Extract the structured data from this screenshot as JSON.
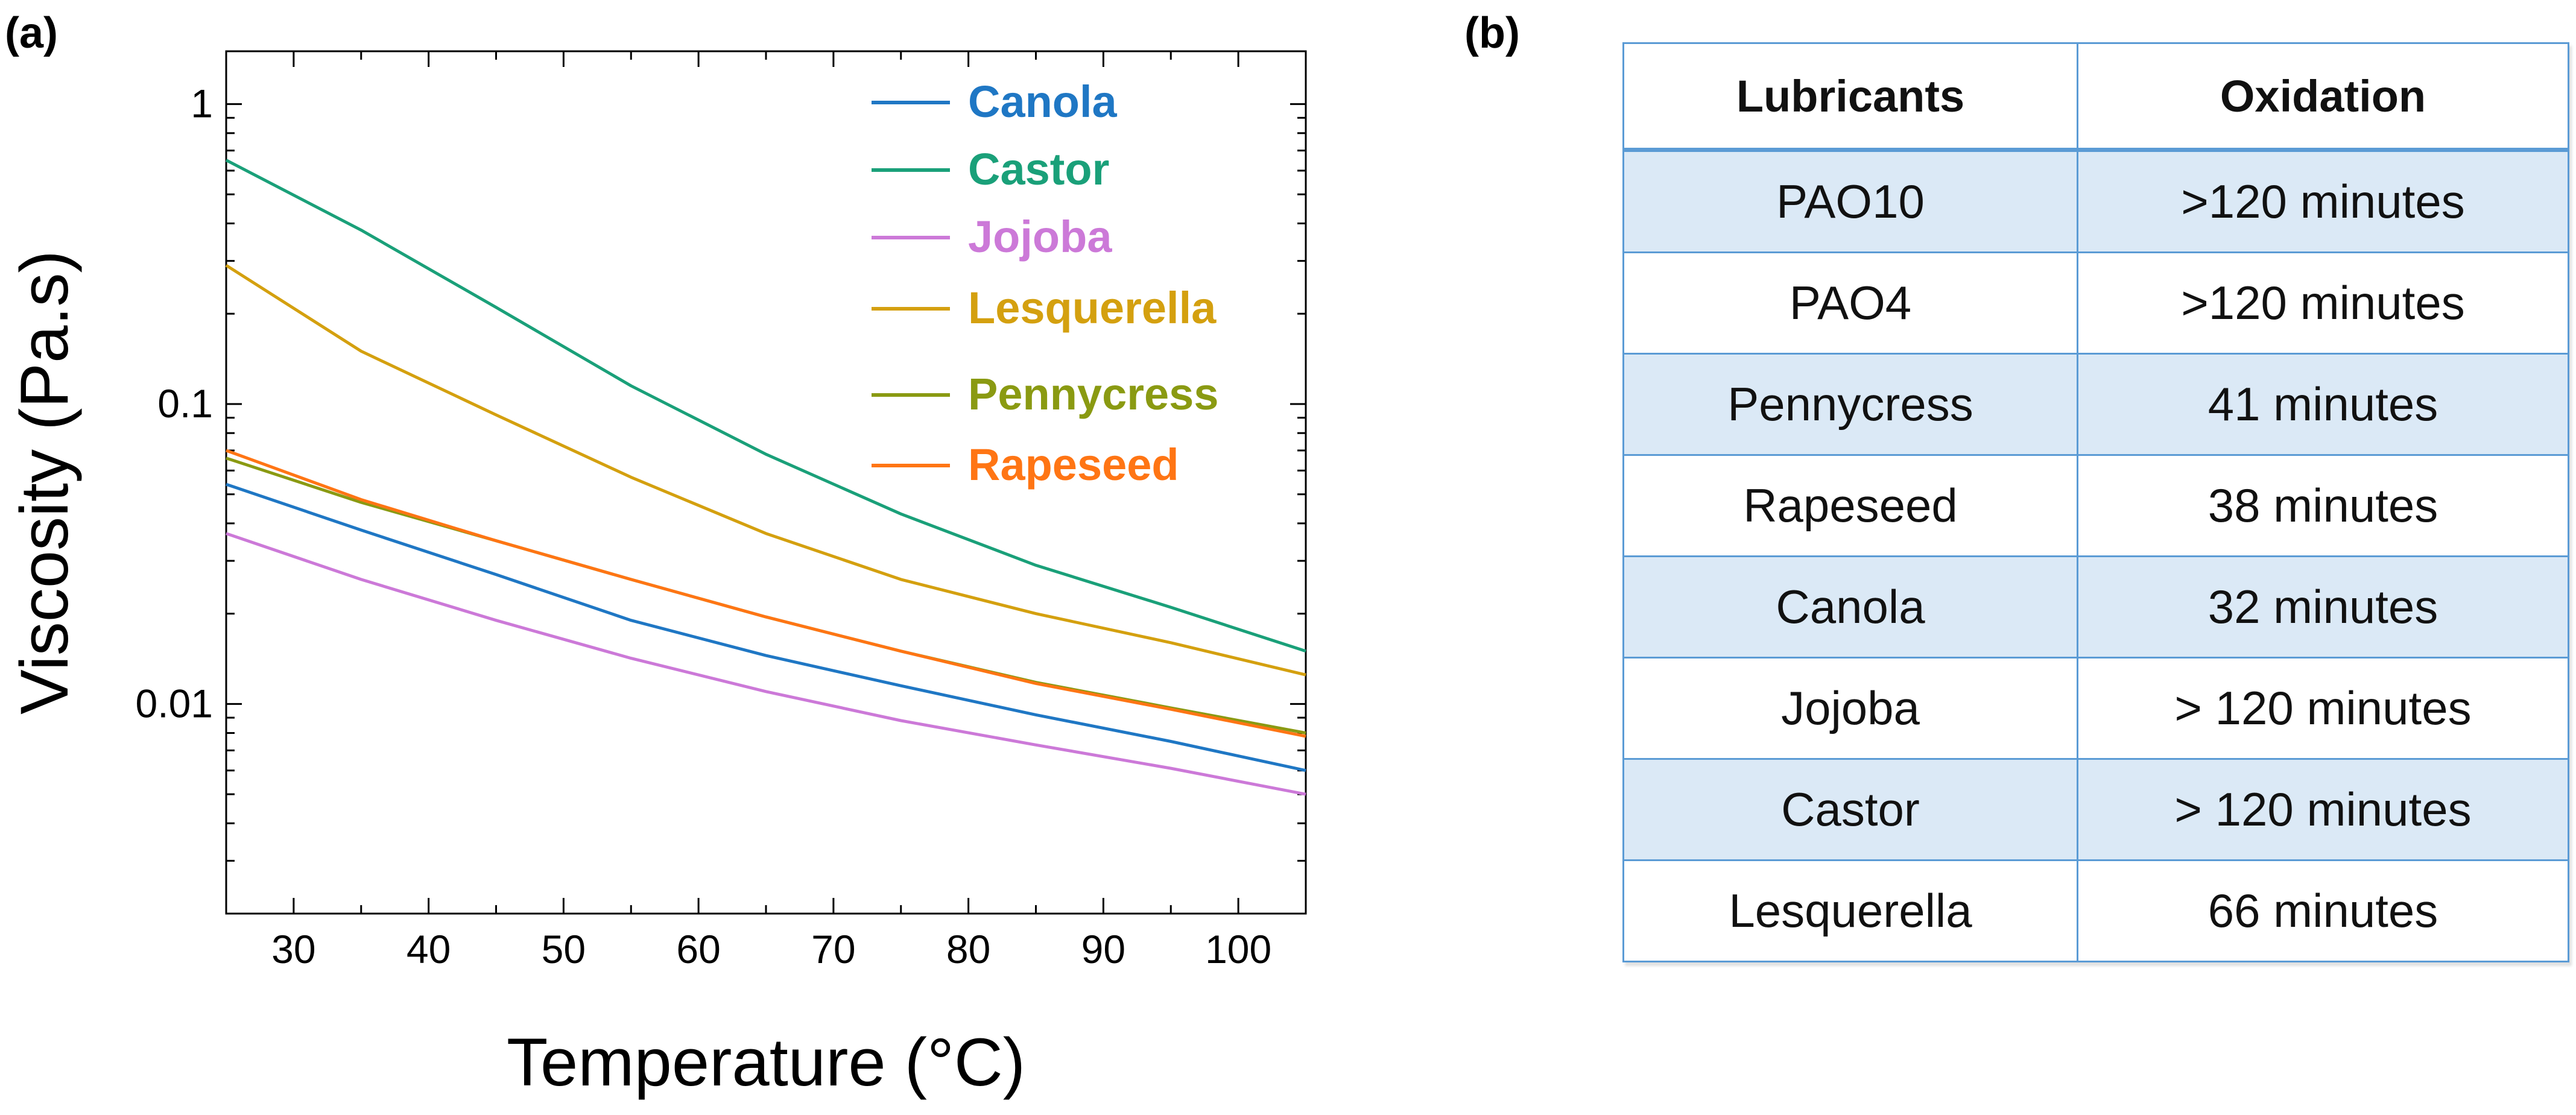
{
  "panel_labels": {
    "a": "(a)",
    "b": "(b)"
  },
  "chart_data": {
    "type": "line",
    "xlabel": "Temperature (°C)",
    "ylabel": "Viscosity (Pa.s)",
    "xlim": [
      25,
      105
    ],
    "ylim": [
      0.002,
      1.5
    ],
    "yscale": "log",
    "xticks": [
      30,
      40,
      50,
      60,
      70,
      80,
      90,
      100
    ],
    "xtick_labels": [
      "30",
      "40",
      "50",
      "60",
      "70",
      "80",
      "90",
      "100"
    ],
    "yticks": [
      0.01,
      0.1,
      1
    ],
    "ytick_labels": [
      "0.01",
      "0.1",
      "1"
    ],
    "legend_position": "top-right",
    "x": [
      25,
      35,
      45,
      55,
      65,
      75,
      85,
      95,
      105
    ],
    "series": [
      {
        "name": "Canola",
        "color": "#1f77c4",
        "values": [
          0.054,
          0.038,
          0.027,
          0.019,
          0.0145,
          0.0115,
          0.0092,
          0.0075,
          0.006
        ]
      },
      {
        "name": "Castor",
        "color": "#1aa079",
        "values": [
          0.65,
          0.38,
          0.21,
          0.115,
          0.068,
          0.043,
          0.029,
          0.021,
          0.015
        ]
      },
      {
        "name": "Jojoba",
        "color": "#cc79d8",
        "values": [
          0.037,
          0.026,
          0.019,
          0.0142,
          0.011,
          0.0088,
          0.0073,
          0.0061,
          0.005
        ]
      },
      {
        "name": "Lesquerella",
        "color": "#d4a00f",
        "values": [
          0.29,
          0.15,
          0.092,
          0.057,
          0.037,
          0.026,
          0.02,
          0.016,
          0.0125
        ]
      },
      {
        "name": "Pennycress",
        "color": "#8a9a12",
        "values": [
          0.066,
          0.047,
          0.035,
          0.026,
          0.0195,
          0.015,
          0.0118,
          0.0097,
          0.008
        ]
      },
      {
        "name": "Rapeseed",
        "color": "#ff7514",
        "values": [
          0.07,
          0.048,
          0.035,
          0.026,
          0.0195,
          0.015,
          0.0117,
          0.0096,
          0.0078
        ]
      }
    ]
  },
  "table": {
    "headers": [
      "Lubricants",
      "Oxidation"
    ],
    "rows": [
      [
        "PAO10",
        ">120 minutes"
      ],
      [
        "PAO4",
        ">120 minutes"
      ],
      [
        "Pennycress",
        "41 minutes"
      ],
      [
        "Rapeseed",
        "38 minutes"
      ],
      [
        "Canola",
        "32 minutes"
      ],
      [
        "Jojoba",
        "> 120 minutes"
      ],
      [
        "Castor",
        "> 120 minutes"
      ],
      [
        "Lesquerella",
        "66 minutes"
      ]
    ]
  }
}
